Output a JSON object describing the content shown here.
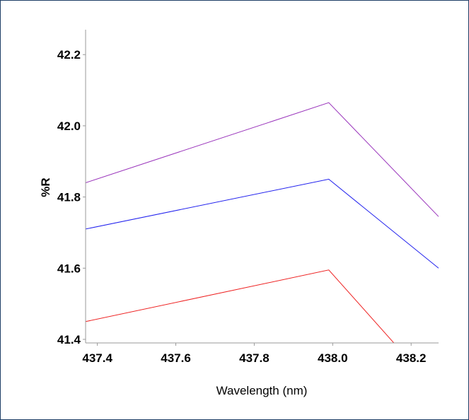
{
  "chart_data": {
    "type": "line",
    "title": "",
    "xlabel": "Wavelength (nm)",
    "ylabel": "%R",
    "xlim": [
      437.37,
      438.27
    ],
    "ylim": [
      41.39,
      42.27
    ],
    "xticks": [
      437.4,
      437.6,
      437.8,
      438.0,
      438.2
    ],
    "yticks": [
      41.4,
      41.6,
      41.8,
      42.0,
      42.2
    ],
    "xtick_labels": [
      "437.4",
      "437.6",
      "437.8",
      "438.0",
      "438.2"
    ],
    "ytick_labels": [
      "41.4",
      "41.6",
      "41.8",
      "42.0",
      "42.2"
    ],
    "grid": false,
    "legend": "none",
    "series": [
      {
        "color": "#9933bb",
        "x": [
          437.37,
          437.99,
          438.27
        ],
        "y": [
          41.84,
          42.065,
          41.745
        ]
      },
      {
        "color": "#2222ee",
        "x": [
          437.37,
          437.99,
          438.27
        ],
        "y": [
          41.71,
          41.85,
          41.6
        ]
      },
      {
        "color": "#ee2222",
        "x": [
          437.37,
          437.99,
          438.16
        ],
        "y": [
          41.45,
          41.595,
          41.385
        ]
      }
    ]
  }
}
